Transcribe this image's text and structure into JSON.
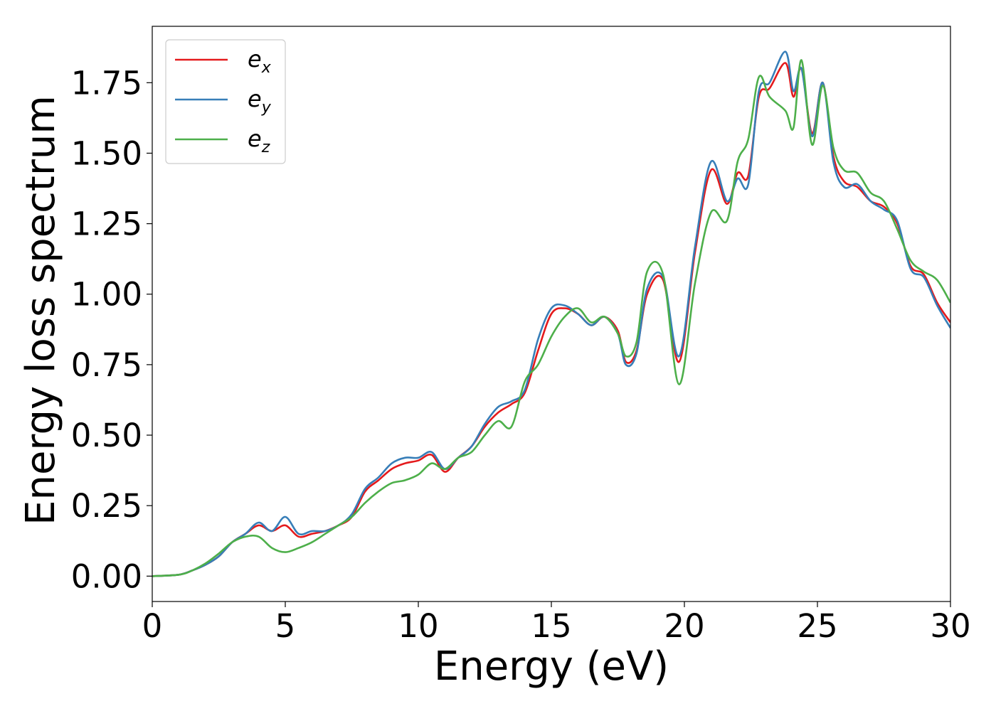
{
  "chart_data": {
    "type": "line",
    "xlabel": "Energy (eV)",
    "ylabel": "Energy loss spectrum",
    "xlim": [
      0,
      30
    ],
    "ylim": [
      -0.09,
      1.95
    ],
    "xticks": [
      0,
      5,
      10,
      15,
      20,
      25,
      30
    ],
    "xtick_labels": [
      "0",
      "5",
      "10",
      "15",
      "20",
      "25",
      "30"
    ],
    "yticks": [
      0.0,
      0.25,
      0.5,
      0.75,
      1.0,
      1.25,
      1.5,
      1.75
    ],
    "ytick_labels": [
      "0.00",
      "0.25",
      "0.50",
      "0.75",
      "1.00",
      "1.25",
      "1.50",
      "1.75"
    ],
    "grid": false,
    "legend_position": "top-left",
    "series": [
      {
        "name": "e",
        "name_sub": "x",
        "color": "#e41a1c",
        "x": [
          0,
          1,
          1.5,
          2,
          2.5,
          3,
          3.5,
          4,
          4.5,
          5,
          5.5,
          6,
          6.5,
          7,
          7.5,
          8,
          8.5,
          9,
          9.5,
          10,
          10.5,
          11,
          11.5,
          12,
          12.5,
          13,
          13.5,
          14,
          14.5,
          15,
          15.5,
          16,
          16.5,
          17,
          17.5,
          17.8,
          18.2,
          18.6,
          19.2,
          19.8,
          20.4,
          21,
          21.6,
          22,
          22.4,
          22.8,
          23.2,
          23.8,
          24.1,
          24.4,
          24.8,
          25.2,
          25.6,
          26,
          26.5,
          27,
          27.5,
          28,
          28.5,
          29,
          29.5,
          30
        ],
        "y": [
          0,
          0.005,
          0.02,
          0.04,
          0.07,
          0.12,
          0.15,
          0.18,
          0.16,
          0.18,
          0.14,
          0.15,
          0.16,
          0.18,
          0.21,
          0.3,
          0.34,
          0.38,
          0.4,
          0.41,
          0.43,
          0.37,
          0.42,
          0.46,
          0.53,
          0.58,
          0.61,
          0.65,
          0.8,
          0.93,
          0.95,
          0.93,
          0.89,
          0.92,
          0.87,
          0.76,
          0.8,
          1.0,
          1.05,
          0.76,
          1.15,
          1.44,
          1.32,
          1.43,
          1.42,
          1.7,
          1.73,
          1.82,
          1.7,
          1.8,
          1.57,
          1.75,
          1.49,
          1.4,
          1.38,
          1.33,
          1.31,
          1.25,
          1.1,
          1.07,
          0.97,
          0.9
        ]
      },
      {
        "name": "e",
        "name_sub": "y",
        "color": "#377eb8",
        "x": [
          0,
          1,
          1.5,
          2,
          2.5,
          3,
          3.5,
          4,
          4.5,
          5,
          5.5,
          6,
          6.5,
          7,
          7.5,
          8,
          8.5,
          9,
          9.5,
          10,
          10.5,
          11,
          11.5,
          12,
          12.5,
          13,
          13.5,
          14,
          14.5,
          15,
          15.5,
          16,
          16.5,
          17,
          17.5,
          17.8,
          18.2,
          18.6,
          19.2,
          19.8,
          20.4,
          21,
          21.6,
          22,
          22.4,
          22.8,
          23.2,
          23.8,
          24.1,
          24.4,
          24.8,
          25.2,
          25.6,
          26,
          26.5,
          27,
          27.5,
          28,
          28.5,
          29,
          29.5,
          30
        ],
        "y": [
          0,
          0.005,
          0.02,
          0.04,
          0.07,
          0.12,
          0.15,
          0.19,
          0.16,
          0.21,
          0.15,
          0.16,
          0.16,
          0.18,
          0.22,
          0.31,
          0.35,
          0.4,
          0.42,
          0.42,
          0.44,
          0.38,
          0.42,
          0.46,
          0.54,
          0.6,
          0.62,
          0.66,
          0.84,
          0.95,
          0.96,
          0.93,
          0.89,
          0.92,
          0.86,
          0.75,
          0.79,
          1.02,
          1.06,
          0.78,
          1.17,
          1.47,
          1.33,
          1.41,
          1.39,
          1.72,
          1.75,
          1.86,
          1.72,
          1.8,
          1.56,
          1.75,
          1.47,
          1.38,
          1.39,
          1.33,
          1.3,
          1.26,
          1.09,
          1.06,
          0.96,
          0.88
        ]
      },
      {
        "name": "e",
        "name_sub": "z",
        "color": "#4daf4a",
        "x": [
          0,
          1,
          1.5,
          2,
          2.5,
          3,
          3.5,
          4,
          4.5,
          5,
          5.5,
          6,
          6.5,
          7,
          7.5,
          8,
          8.5,
          9,
          9.5,
          10,
          10.5,
          11,
          11.5,
          12,
          12.5,
          13,
          13.5,
          14,
          14.5,
          15,
          15.5,
          16,
          16.5,
          17,
          17.5,
          17.8,
          18.2,
          18.6,
          19.2,
          19.8,
          20.4,
          21,
          21.6,
          22,
          22.4,
          22.8,
          23.2,
          23.8,
          24.1,
          24.4,
          24.8,
          25.2,
          25.6,
          26,
          26.5,
          27,
          27.5,
          28,
          28.5,
          29,
          29.5,
          30
        ],
        "y": [
          0,
          0.005,
          0.02,
          0.045,
          0.08,
          0.12,
          0.14,
          0.14,
          0.1,
          0.085,
          0.1,
          0.12,
          0.15,
          0.18,
          0.21,
          0.26,
          0.3,
          0.33,
          0.34,
          0.36,
          0.4,
          0.38,
          0.42,
          0.44,
          0.5,
          0.55,
          0.53,
          0.69,
          0.75,
          0.85,
          0.92,
          0.95,
          0.9,
          0.92,
          0.86,
          0.78,
          0.83,
          1.08,
          1.07,
          0.68,
          1.04,
          1.29,
          1.26,
          1.47,
          1.55,
          1.77,
          1.7,
          1.65,
          1.59,
          1.83,
          1.53,
          1.74,
          1.52,
          1.44,
          1.43,
          1.36,
          1.33,
          1.23,
          1.12,
          1.08,
          1.05,
          0.97
        ]
      }
    ]
  }
}
